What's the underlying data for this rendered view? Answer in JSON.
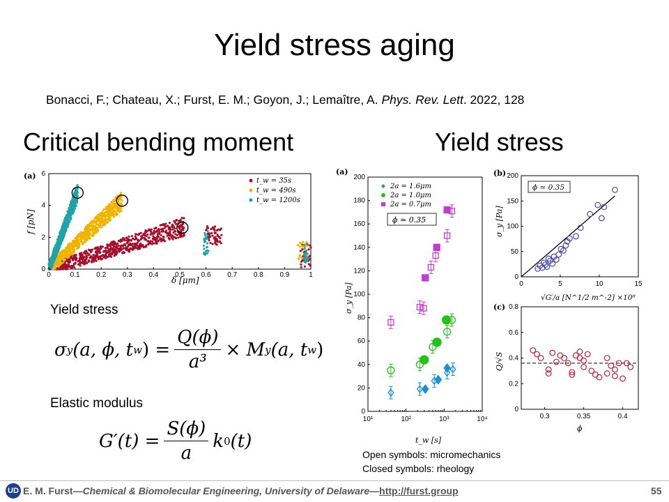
{
  "title": "Yield stress aging",
  "citation": {
    "authors": "Bonacci, F.; Chateau, X.; Furst, E. M.; Goyon, J.; Lemaître, A. ",
    "journal": "Phys. Rev. Lett",
    "rest": ". 2022, 128"
  },
  "headings": {
    "left": "Critical bending moment",
    "right": "Yield stress"
  },
  "subheadings": {
    "yield": "Yield stress",
    "elastic": "Elastic modulus"
  },
  "equations": {
    "yield": {
      "lhs": "σ",
      "lhs_sub": "y",
      "args": "(a, ϕ, t",
      "args_sub": "w",
      "args_end": ") =",
      "num": "Q(ϕ)",
      "den": "a³",
      "rhs": "× M",
      "rhs_sub": "y",
      "rhs_args": "(a, t",
      "rhs_args_sub": "w",
      "rhs_end": ")"
    },
    "elastic": {
      "lhs": "G′(t) =",
      "num": "S(ϕ)",
      "den": "a",
      "rhs": "k",
      "rhs_sub": "0",
      "rhs_end": "(t)"
    }
  },
  "notes": {
    "open": "Open symbols: micromechanics",
    "closed": "Closed symbols: rheology"
  },
  "footer": {
    "logo": "UD",
    "author": "E. M. Furst",
    "dash1": "—",
    "dept": "Chemical & Biomolecular Engineering, University of Delaware",
    "dash2": "—",
    "link": "http://furst.group",
    "page": "55"
  },
  "chart_data": [
    {
      "panel": "(a)",
      "type": "scatter",
      "xlabel": "δ [μm]",
      "ylabel": "f [pN]",
      "xlim": [
        0,
        1
      ],
      "ylim": [
        0,
        6
      ],
      "xticks": [
        "0",
        "0.1",
        "0.2",
        "0.3",
        "0.4",
        "0.5",
        "0.6",
        "0.7",
        "0.8",
        "0.9",
        "1"
      ],
      "yticks": [
        "0",
        "2",
        "4",
        "6"
      ],
      "legend_position": "top-right",
      "series": [
        {
          "name": "t_w = 35s",
          "color": "#a50f2e",
          "trend": {
            "x0": 0.0,
            "y0": 0.0,
            "x1": 0.52,
            "y1": 2.7
          }
        },
        {
          "name": "t_w = 490s",
          "color": "#f0b400",
          "trend": {
            "x0": 0.0,
            "y0": 0.0,
            "x1": 0.28,
            "y1": 4.3
          }
        },
        {
          "name": "t_w = 1200s",
          "color": "#1fa3a8",
          "trend": {
            "x0": 0.0,
            "y0": 0.0,
            "x1": 0.11,
            "y1": 4.8
          }
        }
      ],
      "circled_points": [
        {
          "x": 0.11,
          "y": 4.8
        },
        {
          "x": 0.28,
          "y": 4.3
        },
        {
          "x": 0.51,
          "y": 2.6
        }
      ]
    },
    {
      "panel": "(a)",
      "type": "scatter",
      "xlabel": "t_w [s]",
      "ylabel": "σ_y [Pa]",
      "xscale": "log",
      "xlim": [
        10,
        10000
      ],
      "ylim": [
        0,
        200
      ],
      "yticks": [
        "0",
        "20",
        "40",
        "60",
        "80",
        "100",
        "120",
        "140",
        "160",
        "180",
        "200"
      ],
      "xticks": [
        "10¹",
        "10²",
        "10³",
        "10⁴"
      ],
      "annotation": "ϕ ≃ 0.35",
      "legend_position": "top-left",
      "series": [
        {
          "name": "2a = 1.6μm",
          "color": "#1a8fd6",
          "marker": "diamond",
          "open": [
            [
              40,
              16
            ],
            [
              230,
              19
            ],
            [
              550,
              26
            ],
            [
              1200,
              33
            ],
            [
              1700,
              36
            ]
          ],
          "closed": [
            [
              320,
              19
            ],
            [
              700,
              27
            ],
            [
              1200,
              37
            ]
          ]
        },
        {
          "name": "2a = 1.0μm",
          "color": "#22c21b",
          "marker": "circle",
          "open": [
            [
              40,
              35
            ],
            [
              230,
              40
            ],
            [
              500,
              55
            ],
            [
              1200,
              68
            ],
            [
              1600,
              78
            ]
          ],
          "closed": [
            [
              300,
              44
            ],
            [
              650,
              59
            ],
            [
              1150,
              78
            ]
          ]
        },
        {
          "name": "2a = 0.7μm",
          "color": "#bf3ecf",
          "marker": "square",
          "open": [
            [
              40,
              76
            ],
            [
              230,
              89
            ],
            [
              290,
              88
            ],
            [
              450,
              123
            ],
            [
              600,
              133
            ],
            [
              1200,
              150
            ],
            [
              1600,
              171
            ]
          ],
          "closed": [
            [
              320,
              114
            ],
            [
              640,
              140
            ],
            [
              1200,
              172
            ]
          ]
        }
      ]
    },
    {
      "panel": "(b)",
      "type": "scatter",
      "xlabel": "√G′/a [N^1/2 m^-2] ×10⁸",
      "ylabel": "σ_y [Pa]",
      "xlim": [
        0,
        15
      ],
      "ylim": [
        0,
        200
      ],
      "xticks": [
        "0",
        "5",
        "10",
        "15"
      ],
      "yticks": [
        "0",
        "50",
        "100",
        "150",
        "200"
      ],
      "annotation": "ϕ ≃ 0.35",
      "fit_line": [
        [
          0,
          0
        ],
        [
          12,
          160
        ]
      ],
      "points": [
        [
          2.1,
          16
        ],
        [
          2.4,
          22
        ],
        [
          2.7,
          18
        ],
        [
          2.9,
          28
        ],
        [
          3.1,
          24
        ],
        [
          3.3,
          20
        ],
        [
          3.5,
          36
        ],
        [
          3.7,
          32
        ],
        [
          4.0,
          26
        ],
        [
          4.2,
          40
        ],
        [
          4.5,
          34
        ],
        [
          4.8,
          44
        ],
        [
          5.1,
          55
        ],
        [
          5.4,
          52
        ],
        [
          5.7,
          62
        ],
        [
          5.9,
          70
        ],
        [
          6.2,
          76
        ],
        [
          7.0,
          80
        ],
        [
          7.6,
          97
        ],
        [
          8.8,
          124
        ],
        [
          9.8,
          142
        ],
        [
          10.3,
          116
        ],
        [
          10.6,
          138
        ],
        [
          12.0,
          172
        ]
      ],
      "color": "#3a3aa8"
    },
    {
      "panel": "(c)",
      "type": "scatter",
      "xlabel": "ϕ",
      "ylabel": "Q/√S",
      "xlim": [
        0.27,
        0.42
      ],
      "ylim": [
        0,
        0.8
      ],
      "xticks": [
        "0.3",
        "0.35",
        "0.4"
      ],
      "yticks": [
        "0",
        "0.2",
        "0.4",
        "0.6",
        "0.8"
      ],
      "dashed_line_y": 0.36,
      "points": [
        [
          0.285,
          0.46
        ],
        [
          0.29,
          0.43
        ],
        [
          0.295,
          0.4
        ],
        [
          0.305,
          0.31
        ],
        [
          0.305,
          0.28
        ],
        [
          0.31,
          0.44
        ],
        [
          0.315,
          0.37
        ],
        [
          0.32,
          0.42
        ],
        [
          0.325,
          0.4
        ],
        [
          0.33,
          0.36
        ],
        [
          0.335,
          0.29
        ],
        [
          0.335,
          0.27
        ],
        [
          0.34,
          0.42
        ],
        [
          0.345,
          0.45
        ],
        [
          0.345,
          0.4
        ],
        [
          0.35,
          0.38
        ],
        [
          0.35,
          0.33
        ],
        [
          0.355,
          0.43
        ],
        [
          0.36,
          0.3
        ],
        [
          0.365,
          0.27
        ],
        [
          0.37,
          0.25
        ],
        [
          0.38,
          0.4
        ],
        [
          0.38,
          0.28
        ],
        [
          0.385,
          0.34
        ],
        [
          0.39,
          0.31
        ],
        [
          0.39,
          0.26
        ],
        [
          0.395,
          0.36
        ],
        [
          0.4,
          0.24
        ],
        [
          0.405,
          0.36
        ],
        [
          0.41,
          0.33
        ]
      ],
      "color": "#b3203a"
    }
  ]
}
